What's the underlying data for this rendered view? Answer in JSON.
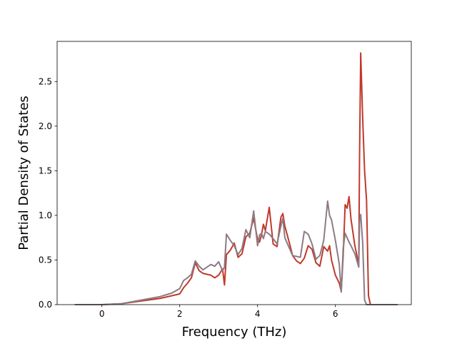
{
  "chart_data": {
    "type": "line",
    "title": "",
    "xlabel": "Frequency (THz)",
    "ylabel": "Partial Density of States",
    "xlim": [
      -1.15,
      7.95
    ],
    "ylim": [
      0.0,
      2.95
    ],
    "xticks": [
      0,
      2,
      4,
      6
    ],
    "xtick_labels": [
      "0",
      "2",
      "4",
      "6"
    ],
    "yticks": [
      0.0,
      0.5,
      1.0,
      1.5,
      2.0,
      2.5
    ],
    "ytick_labels": [
      "0.0",
      "0.5",
      "1.0",
      "1.5",
      "2.0",
      "2.5"
    ],
    "grid": false,
    "legend": null,
    "series": [
      {
        "color": "#c0392b",
        "x": [
          -0.7,
          0.0,
          0.5,
          1.0,
          1.5,
          1.8,
          2.0,
          2.1,
          2.2,
          2.3,
          2.4,
          2.5,
          2.6,
          2.7,
          2.8,
          2.9,
          3.0,
          3.1,
          3.15,
          3.2,
          3.3,
          3.4,
          3.5,
          3.6,
          3.7,
          3.8,
          3.9,
          4.0,
          4.05,
          4.1,
          4.15,
          4.2,
          4.3,
          4.4,
          4.5,
          4.6,
          4.65,
          4.7,
          4.8,
          4.9,
          5.0,
          5.1,
          5.2,
          5.3,
          5.4,
          5.5,
          5.6,
          5.7,
          5.8,
          5.85,
          5.9,
          6.0,
          6.1,
          6.15,
          6.2,
          6.25,
          6.3,
          6.35,
          6.4,
          6.5,
          6.6,
          6.62,
          6.65,
          6.7,
          6.75,
          6.8,
          6.85,
          6.9,
          7.0,
          7.6
        ],
        "values": [
          0.0,
          0.0,
          0.01,
          0.04,
          0.07,
          0.1,
          0.12,
          0.19,
          0.24,
          0.3,
          0.47,
          0.38,
          0.35,
          0.34,
          0.33,
          0.3,
          0.33,
          0.4,
          0.22,
          0.56,
          0.61,
          0.69,
          0.53,
          0.57,
          0.76,
          0.8,
          0.97,
          0.73,
          0.7,
          0.78,
          0.9,
          0.83,
          1.09,
          0.68,
          0.65,
          0.98,
          1.02,
          0.88,
          0.72,
          0.55,
          0.49,
          0.46,
          0.52,
          0.66,
          0.62,
          0.47,
          0.43,
          0.65,
          0.6,
          0.66,
          0.5,
          0.33,
          0.24,
          0.15,
          0.55,
          1.12,
          1.08,
          1.21,
          0.96,
          0.66,
          0.45,
          1.65,
          2.82,
          2.1,
          1.5,
          1.17,
          0.1,
          0.0,
          0.0,
          0.0
        ]
      },
      {
        "color": "#8c7b85",
        "x": [
          -0.7,
          0.0,
          0.5,
          1.0,
          1.5,
          1.8,
          2.0,
          2.1,
          2.2,
          2.3,
          2.4,
          2.5,
          2.6,
          2.7,
          2.8,
          2.9,
          3.0,
          3.1,
          3.15,
          3.2,
          3.3,
          3.4,
          3.5,
          3.6,
          3.7,
          3.8,
          3.9,
          4.0,
          4.05,
          4.1,
          4.15,
          4.2,
          4.3,
          4.4,
          4.5,
          4.6,
          4.65,
          4.7,
          4.8,
          4.9,
          5.0,
          5.1,
          5.2,
          5.3,
          5.4,
          5.5,
          5.6,
          5.7,
          5.8,
          5.85,
          5.9,
          6.0,
          6.1,
          6.15,
          6.2,
          6.25,
          6.3,
          6.35,
          6.4,
          6.5,
          6.6,
          6.62,
          6.65,
          6.7,
          6.75,
          6.8,
          6.85,
          6.9,
          7.0,
          7.6
        ],
        "values": [
          0.0,
          0.0,
          0.01,
          0.05,
          0.09,
          0.13,
          0.18,
          0.27,
          0.3,
          0.34,
          0.49,
          0.43,
          0.39,
          0.42,
          0.45,
          0.43,
          0.48,
          0.38,
          0.42,
          0.79,
          0.72,
          0.66,
          0.56,
          0.63,
          0.84,
          0.75,
          1.05,
          0.66,
          0.78,
          0.8,
          0.74,
          0.82,
          0.79,
          0.74,
          0.68,
          0.88,
          0.97,
          0.75,
          0.65,
          0.55,
          0.54,
          0.53,
          0.82,
          0.79,
          0.68,
          0.51,
          0.55,
          0.72,
          1.16,
          1.0,
          0.95,
          0.72,
          0.45,
          0.14,
          0.63,
          0.8,
          0.75,
          0.7,
          0.66,
          0.57,
          0.42,
          0.93,
          1.01,
          0.7,
          0.05,
          0.0,
          0.0,
          0.0,
          0.0,
          0.0
        ]
      }
    ]
  }
}
